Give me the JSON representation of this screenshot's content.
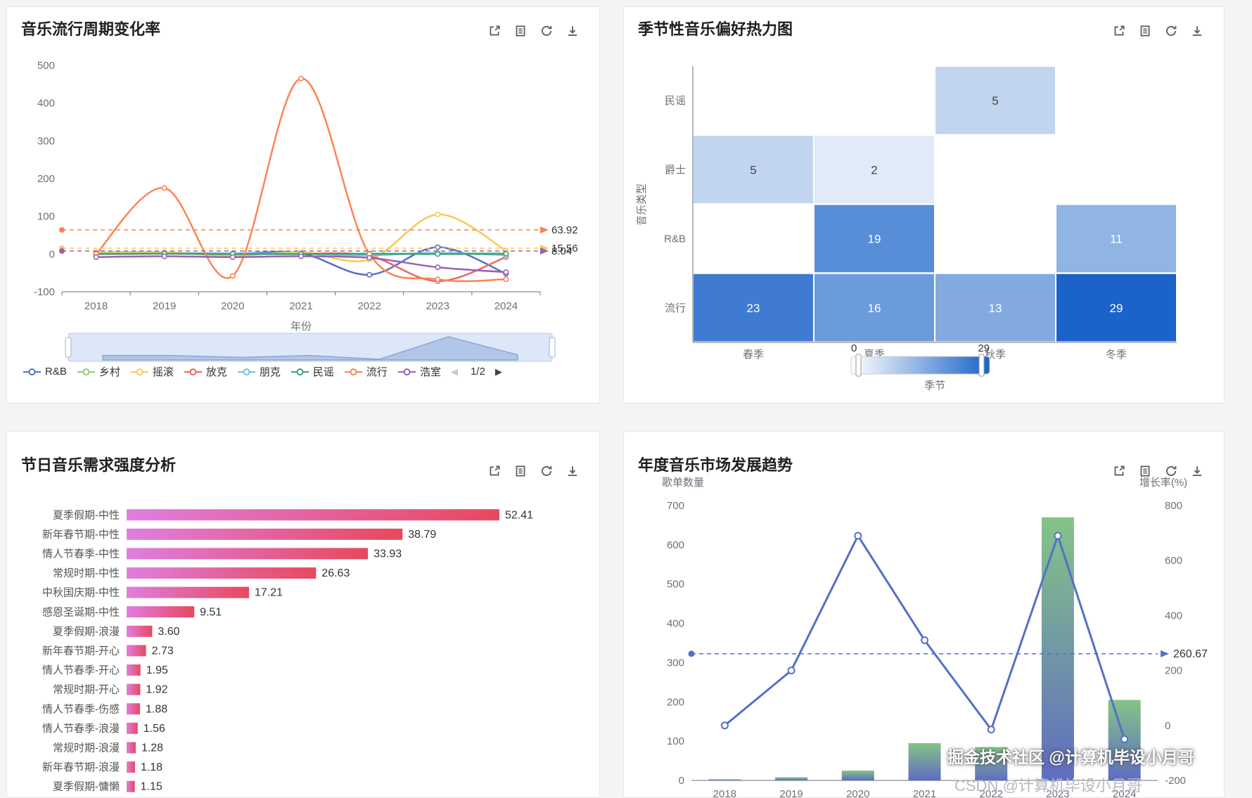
{
  "page": {
    "background": "#f3f4f6",
    "panel_background": "#ffffff"
  },
  "toolbox": {
    "icons": [
      "data-zoom-icon",
      "data-view-icon",
      "restore-icon",
      "save-image-icon"
    ]
  },
  "chart_data": [
    {
      "type": "line",
      "title": "音乐流行周期变化率",
      "x": [
        "2018",
        "2019",
        "2020",
        "2021",
        "2022",
        "2023",
        "2024"
      ],
      "xlabel": "年份",
      "ylim": [
        -100,
        500
      ],
      "yticks": [
        -100,
        0,
        100,
        200,
        300,
        400,
        500
      ],
      "series": [
        {
          "name": "R&B",
          "color": "#5470c6",
          "values": [
            2,
            3,
            1,
            2,
            -55,
            18,
            -52
          ]
        },
        {
          "name": "乡村",
          "color": "#91cc75",
          "values": [
            1,
            2,
            1,
            1,
            0,
            2,
            1
          ]
        },
        {
          "name": "摇滚",
          "color": "#fac858",
          "values": [
            5,
            5,
            -5,
            5,
            -15,
            105,
            9
          ]
        },
        {
          "name": "放克",
          "color": "#ee6666",
          "values": [
            0,
            1,
            0,
            1,
            -5,
            -72,
            -8
          ]
        },
        {
          "name": "朋克",
          "color": "#73c0de",
          "values": [
            1,
            1,
            2,
            1,
            -3,
            3,
            -3
          ]
        },
        {
          "name": "民谣",
          "color": "#3ba272",
          "values": [
            0,
            1,
            0,
            0,
            1,
            0,
            1
          ]
        },
        {
          "name": "流行",
          "color": "#fc8452",
          "values": [
            0,
            175,
            -58,
            465,
            0,
            -67,
            -67
          ]
        },
        {
          "name": "浩室",
          "color": "#9a60b4",
          "values": [
            -8,
            -6,
            -8,
            -6,
            -10,
            -35,
            -48
          ]
        }
      ],
      "marklines": [
        {
          "value": 63.92,
          "label": "63.92",
          "color": "#fc8452"
        },
        {
          "value": 15.56,
          "label": "15.56",
          "color": "#fac858"
        },
        {
          "value": 8.04,
          "label": "8.04",
          "color": "#9a60b4"
        }
      ],
      "legend_nav": {
        "prev": "◀",
        "page": "1/2",
        "next": "▶"
      }
    },
    {
      "type": "heatmap",
      "title": "季节性音乐偏好热力图",
      "x_categories": [
        "春季",
        "夏季",
        "秋季",
        "冬季"
      ],
      "y_categories": [
        "民谣",
        "爵士",
        "R&B",
        "流行"
      ],
      "xlabel": "季节",
      "ylabel": "音乐类型",
      "cells": [
        {
          "x": "秋季",
          "y": "民谣",
          "value": 5
        },
        {
          "x": "春季",
          "y": "爵士",
          "value": 5
        },
        {
          "x": "夏季",
          "y": "爵士",
          "value": 2
        },
        {
          "x": "夏季",
          "y": "R&B",
          "value": 19
        },
        {
          "x": "冬季",
          "y": "R&B",
          "value": 11
        },
        {
          "x": "春季",
          "y": "流行",
          "value": 23
        },
        {
          "x": "夏季",
          "y": "流行",
          "value": 16
        },
        {
          "x": "秋季",
          "y": "流行",
          "value": 13
        },
        {
          "x": "冬季",
          "y": "流行",
          "value": 29
        }
      ],
      "visual_map": {
        "min": 0,
        "max": 29,
        "min_label": "0",
        "max_label": "29",
        "colors": [
          "#ffffff",
          "#1a63c8"
        ]
      }
    },
    {
      "type": "bar",
      "orientation": "horizontal",
      "title": "节日音乐需求强度分析",
      "categories": [
        "夏季假期-中性",
        "新年春节期-中性",
        "情人节春季-中性",
        "常规时期-中性",
        "中秋国庆期-中性",
        "感恩圣诞期-中性",
        "夏季假期-浪漫",
        "新年春节期-开心",
        "情人节春季-开心",
        "常规时期-开心",
        "情人节春季-伤感",
        "情人节春季-浪漫",
        "常规时期-浪漫",
        "新年春节期-浪漫",
        "夏季假期-慵懒"
      ],
      "values": [
        52.41,
        38.79,
        33.93,
        26.63,
        17.21,
        9.51,
        3.6,
        2.73,
        1.95,
        1.92,
        1.88,
        1.56,
        1.28,
        1.18,
        1.15
      ],
      "bar_gradient": [
        "#e07edf",
        "#e8485e"
      ]
    },
    {
      "type": "bar",
      "subtype": "bar-line-combo",
      "title": "年度音乐市场发展趋势",
      "x": [
        "2018",
        "2019",
        "2020",
        "2021",
        "2022",
        "2023",
        "2024"
      ],
      "left_axis": {
        "name": "歌单数量",
        "min": 0,
        "max": 700,
        "ticks": [
          0,
          100,
          200,
          300,
          400,
          500,
          600,
          700
        ]
      },
      "right_axis": {
        "name": "增长率(%)",
        "min": -200,
        "max": 800,
        "ticks": [
          -200,
          0,
          200,
          400,
          600,
          800
        ]
      },
      "bars": {
        "name": "歌单数量",
        "values": [
          3,
          8,
          25,
          95,
          85,
          670,
          205
        ],
        "gradient": [
          "#84c487",
          "#5f6cc2"
        ]
      },
      "line": {
        "name": "增长率",
        "color": "#5470c6",
        "values": [
          0,
          200,
          690,
          310,
          -15,
          690,
          -50
        ]
      },
      "markline": {
        "value": 260.67,
        "label": "260.67",
        "color": "#5470c6"
      },
      "watermark": [
        "掘金技术社区 @计算机毕设小月哥",
        "CSDN @计算机毕设小月哥"
      ]
    }
  ]
}
